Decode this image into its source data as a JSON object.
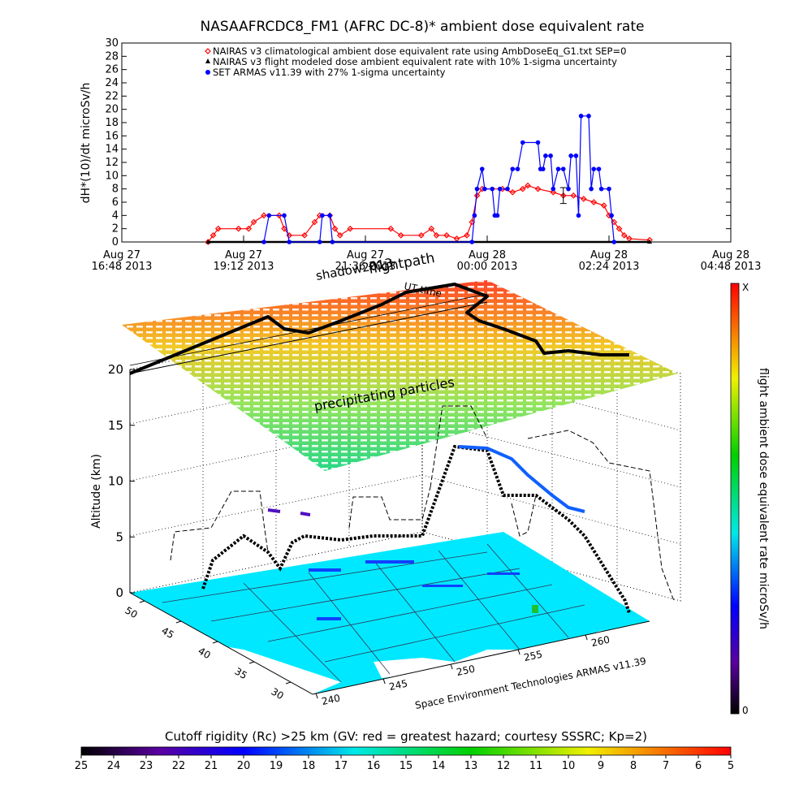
{
  "chart_data": [
    {
      "type": "line",
      "title": "NASAAFRCDC8_FM1 (AFRC DC-8)* ambient dose equivalent rate",
      "ylabel": "dH*(10)/dt microSv/h",
      "xlabel": "",
      "ylim": [
        0,
        30
      ],
      "yticks": [
        0,
        2,
        4,
        6,
        8,
        10,
        12,
        14,
        16,
        18,
        20,
        22,
        24,
        26,
        28,
        30
      ],
      "xlim_hours": [
        0,
        12
      ],
      "xticks": [
        {
          "t": 0,
          "line1": "Aug 27",
          "line2": "16:48 2013"
        },
        {
          "t": 2.4,
          "line1": "Aug 27",
          "line2": "19:12 2013"
        },
        {
          "t": 4.8,
          "line1": "Aug 27",
          "line2": "21:36 2013"
        },
        {
          "t": 7.2,
          "line1": "Aug 28",
          "line2": "00:00 2013"
        },
        {
          "t": 9.6,
          "line1": "Aug 28",
          "line2": "02:24 2013"
        },
        {
          "t": 12,
          "line1": "Aug 28",
          "line2": "04:48 2013"
        }
      ],
      "grid": false,
      "legend_position": "top-left",
      "series": [
        {
          "name": "NAIRAS v3 climatological ambient dose equivalent rate using AmbDoseEq_G1.txt SEP=0",
          "color": "#ff0000",
          "marker": "diamond",
          "points": [
            [
              1.7,
              0
            ],
            [
              1.8,
              1
            ],
            [
              1.9,
              2
            ],
            [
              2.3,
              2
            ],
            [
              2.5,
              2
            ],
            [
              2.6,
              3
            ],
            [
              2.8,
              4
            ],
            [
              3.1,
              4
            ],
            [
              3.2,
              2
            ],
            [
              3.3,
              1
            ],
            [
              3.6,
              1
            ],
            [
              3.8,
              3
            ],
            [
              3.9,
              4
            ],
            [
              4.1,
              4
            ],
            [
              4.2,
              2
            ],
            [
              4.3,
              1
            ],
            [
              4.5,
              2
            ],
            [
              5.3,
              2
            ],
            [
              5.5,
              1
            ],
            [
              5.9,
              1
            ],
            [
              6.1,
              2
            ],
            [
              6.2,
              1
            ],
            [
              6.4,
              1
            ],
            [
              6.6,
              0.5
            ],
            [
              6.8,
              1
            ],
            [
              6.9,
              3
            ],
            [
              7.0,
              7
            ],
            [
              7.1,
              8
            ],
            [
              7.5,
              8
            ],
            [
              7.7,
              7.5
            ],
            [
              7.9,
              8
            ],
            [
              8.0,
              8.5
            ],
            [
              8.2,
              8
            ],
            [
              8.5,
              7.5
            ],
            [
              8.7,
              7
            ],
            [
              8.9,
              7
            ],
            [
              9.1,
              6.5
            ],
            [
              9.3,
              6
            ],
            [
              9.5,
              5.5
            ],
            [
              9.6,
              4
            ],
            [
              9.7,
              3
            ],
            [
              9.8,
              2
            ],
            [
              9.9,
              1
            ],
            [
              10.0,
              0.5
            ],
            [
              10.4,
              0.3
            ]
          ]
        },
        {
          "name": "NAIRAS v3 flight modeled dose ambient equivalent rate with 10% 1-sigma uncertainty",
          "color": "#000000",
          "marker": "triangle",
          "points": [
            [
              1.7,
              0
            ],
            [
              10.4,
              0
            ]
          ],
          "errorbars": [
            [
              8.7,
              7,
              1.2
            ]
          ]
        },
        {
          "name": "SET ARMAS v11.39 with 27% 1-sigma uncertainty",
          "color": "#0000ff",
          "marker": "circle",
          "points": [
            [
              2.8,
              0
            ],
            [
              2.9,
              4
            ],
            [
              3.2,
              4
            ],
            [
              3.3,
              0
            ],
            [
              3.9,
              0
            ],
            [
              3.95,
              4
            ],
            [
              4.1,
              4
            ],
            [
              4.15,
              0
            ],
            [
              6.9,
              0
            ],
            [
              6.95,
              4
            ],
            [
              7.0,
              8
            ],
            [
              7.1,
              11
            ],
            [
              7.15,
              8
            ],
            [
              7.3,
              8
            ],
            [
              7.35,
              4
            ],
            [
              7.4,
              4
            ],
            [
              7.45,
              8
            ],
            [
              7.6,
              8
            ],
            [
              7.7,
              11
            ],
            [
              7.8,
              11
            ],
            [
              7.9,
              15
            ],
            [
              8.2,
              15
            ],
            [
              8.25,
              11
            ],
            [
              8.3,
              11
            ],
            [
              8.35,
              13
            ],
            [
              8.45,
              13
            ],
            [
              8.5,
              8
            ],
            [
              8.6,
              11
            ],
            [
              8.7,
              11
            ],
            [
              8.8,
              8
            ],
            [
              8.85,
              13
            ],
            [
              8.95,
              13
            ],
            [
              9.0,
              4
            ],
            [
              9.05,
              19
            ],
            [
              9.2,
              19
            ],
            [
              9.25,
              8
            ],
            [
              9.3,
              11
            ],
            [
              9.4,
              11
            ],
            [
              9.45,
              8
            ],
            [
              9.6,
              8
            ],
            [
              9.65,
              4
            ],
            [
              9.7,
              0
            ]
          ]
        }
      ]
    },
    {
      "type": "scatter",
      "title": "",
      "zlabel": "Altitude (km)",
      "zlim": [
        0,
        20
      ],
      "zticks": [
        0,
        5,
        10,
        15,
        20
      ],
      "lat_ticks": [
        50,
        45,
        40,
        35,
        30
      ],
      "lon_ticks": [
        240,
        245,
        250,
        255,
        260
      ],
      "annotations": [
        "shadow2013",
        "flightpath",
        "UT time",
        "precipitating particles"
      ],
      "credit": "Space Environment Technologies ARMAS v11.39",
      "colorbar": {
        "label": "flight ambient dose equivalent rate microSv/h",
        "min_label": "0",
        "max_label": "X"
      }
    },
    {
      "type": "heatmap",
      "title": "Cutoff rigidity (Rc) >25 km (GV: red = greatest hazard; courtesy SSSRC; Kp=2)",
      "ticks": [
        25,
        24,
        23,
        22,
        21,
        20,
        19,
        18,
        17,
        16,
        15,
        14,
        13,
        12,
        11,
        10,
        9,
        8,
        7,
        6,
        5
      ],
      "color_low": "#000000",
      "color_high": "#ff0000"
    }
  ]
}
